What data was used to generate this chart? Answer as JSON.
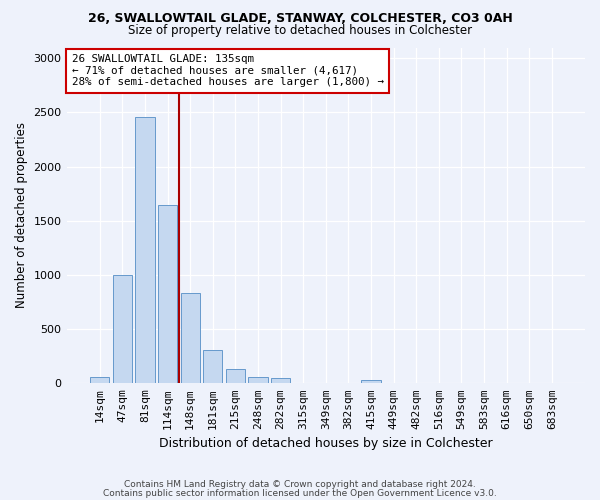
{
  "title1": "26, SWALLOWTAIL GLADE, STANWAY, COLCHESTER, CO3 0AH",
  "title2": "Size of property relative to detached houses in Colchester",
  "xlabel": "Distribution of detached houses by size in Colchester",
  "ylabel": "Number of detached properties",
  "categories": [
    "14sqm",
    "47sqm",
    "81sqm",
    "114sqm",
    "148sqm",
    "181sqm",
    "215sqm",
    "248sqm",
    "282sqm",
    "315sqm",
    "349sqm",
    "382sqm",
    "415sqm",
    "449sqm",
    "482sqm",
    "516sqm",
    "549sqm",
    "583sqm",
    "616sqm",
    "650sqm",
    "683sqm"
  ],
  "values": [
    60,
    1000,
    2460,
    1650,
    830,
    310,
    130,
    55,
    45,
    0,
    0,
    0,
    30,
    0,
    0,
    0,
    0,
    0,
    0,
    0,
    0
  ],
  "bar_color": "#c5d8f0",
  "bar_edgecolor": "#6699cc",
  "vline_color": "#aa0000",
  "annotation_text": "26 SWALLOWTAIL GLADE: 135sqm\n← 71% of detached houses are smaller (4,617)\n28% of semi-detached houses are larger (1,800) →",
  "annotation_box_color": "#ffffff",
  "annotation_box_edgecolor": "#cc0000",
  "ylim": [
    0,
    3100
  ],
  "yticks": [
    0,
    500,
    1000,
    1500,
    2000,
    2500,
    3000
  ],
  "footer1": "Contains HM Land Registry data © Crown copyright and database right 2024.",
  "footer2": "Contains public sector information licensed under the Open Government Licence v3.0.",
  "bg_color": "#eef2fb",
  "plot_bg_color": "#eef2fb"
}
